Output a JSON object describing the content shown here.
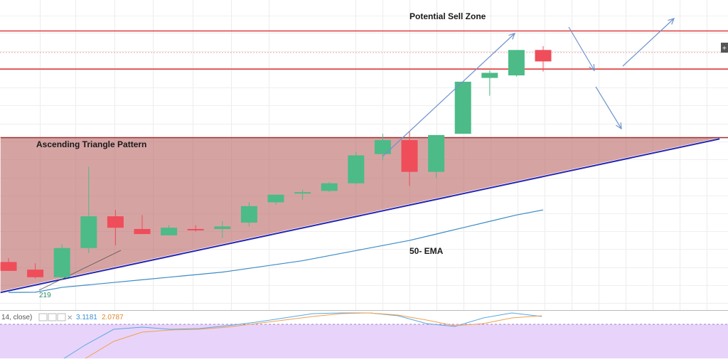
{
  "annotations": {
    "sell_zone": "Potential Sell Zone",
    "triangle": "Ascending Triangle Pattern",
    "ema": "50- EMA",
    "small_value": "219"
  },
  "indicator": {
    "params": "14, close)",
    "value1": "3.1181",
    "value2": "2.0787"
  },
  "colors": {
    "bull": "#4cbb87",
    "bear": "#ef4d5a",
    "resistance_line": "#e03c3c",
    "trendline": "#2626b3",
    "triangle_fill": "#c07272",
    "ema_line": "#3c8bc4",
    "arrow": "#6e93cc",
    "ind_line1": "#5aa8e0",
    "ind_line2": "#f0a050",
    "ind_band": "#e8d4fa"
  },
  "chart_data": {
    "type": "candlestick",
    "y_range": [
      0,
      100
    ],
    "candles": [
      {
        "i": 0,
        "o": 12.5,
        "h": 14.0,
        "l": 9.0,
        "c": 9.0
      },
      {
        "i": 1,
        "o": 9.5,
        "h": 12.0,
        "l": 6.0,
        "c": 6.5
      },
      {
        "i": 2,
        "o": 6.5,
        "h": 19.5,
        "l": 5.5,
        "c": 18.0
      },
      {
        "i": 3,
        "o": 18.0,
        "h": 50.0,
        "l": 16.0,
        "c": 30.5
      },
      {
        "i": 4,
        "o": 30.5,
        "h": 33.0,
        "l": 19.0,
        "c": 26.0
      },
      {
        "i": 5,
        "o": 25.5,
        "h": 31.0,
        "l": 23.5,
        "c": 23.5
      },
      {
        "i": 6,
        "o": 23.0,
        "h": 27.0,
        "l": 23.0,
        "c": 26.0
      },
      {
        "i": 7,
        "o": 25.5,
        "h": 27.0,
        "l": 24.5,
        "c": 25.0
      },
      {
        "i": 8,
        "o": 25.5,
        "h": 28.5,
        "l": 22.0,
        "c": 26.5
      },
      {
        "i": 9,
        "o": 28.0,
        "h": 36.0,
        "l": 26.5,
        "c": 34.5
      },
      {
        "i": 10,
        "o": 36.0,
        "h": 39.0,
        "l": 35.0,
        "c": 39.0
      },
      {
        "i": 11,
        "o": 39.5,
        "h": 41.0,
        "l": 37.0,
        "c": 40.0
      },
      {
        "i": 12,
        "o": 40.5,
        "h": 44.0,
        "l": 40.0,
        "c": 43.5
      },
      {
        "i": 13,
        "o": 43.5,
        "h": 56.0,
        "l": 43.0,
        "c": 54.5
      },
      {
        "i": 14,
        "o": 55.0,
        "h": 63.0,
        "l": 52.5,
        "c": 60.5
      },
      {
        "i": 15,
        "o": 60.5,
        "h": 64.0,
        "l": 42.5,
        "c": 48.0
      },
      {
        "i": 16,
        "o": 48.0,
        "h": 61.5,
        "l": 45.5,
        "c": 62.5
      },
      {
        "i": 17,
        "o": 63.0,
        "h": 83.5,
        "l": 63.0,
        "c": 83.5
      },
      {
        "i": 18,
        "o": 85.0,
        "h": 88.0,
        "l": 78.0,
        "c": 87.0
      },
      {
        "i": 19,
        "o": 86.0,
        "h": 96.0,
        "l": 85.5,
        "c": 96.0
      },
      {
        "i": 20,
        "o": 96.0,
        "h": 97.5,
        "l": 87.5,
        "c": 91.5
      }
    ],
    "ema50": [
      {
        "i": 0,
        "v": 0.5
      },
      {
        "i": 1,
        "v": 0.6
      },
      {
        "i": 2,
        "v": 2.5
      },
      {
        "i": 3,
        "v": 3.5
      },
      {
        "i": 4,
        "v": 4.5
      },
      {
        "i": 5,
        "v": 5.5
      },
      {
        "i": 6,
        "v": 6.5
      },
      {
        "i": 7,
        "v": 7.5
      },
      {
        "i": 8,
        "v": 8.5
      },
      {
        "i": 9,
        "v": 10.0
      },
      {
        "i": 10,
        "v": 11.5
      },
      {
        "i": 11,
        "v": 13.0
      },
      {
        "i": 12,
        "v": 15.0
      },
      {
        "i": 13,
        "v": 17.0
      },
      {
        "i": 14,
        "v": 19.0
      },
      {
        "i": 15,
        "v": 21.0
      },
      {
        "i": 16,
        "v": 23.5
      },
      {
        "i": 17,
        "v": 26.0
      },
      {
        "i": 18,
        "v": 28.5
      },
      {
        "i": 19,
        "v": 31.0
      },
      {
        "i": 20,
        "v": 33.0
      }
    ],
    "resistance_levels": [
      103.5,
      95.0,
      88.5
    ],
    "triangle": {
      "top": 61.5,
      "base_start": {
        "i": -0.3,
        "v": 1.0
      },
      "base_end": {
        "i": 26.6,
        "v": 61.5
      }
    },
    "trendline": {
      "start": {
        "i": -0.3,
        "v": 0.5
      },
      "end": {
        "i": 26.6,
        "v": 61.0
      }
    }
  }
}
